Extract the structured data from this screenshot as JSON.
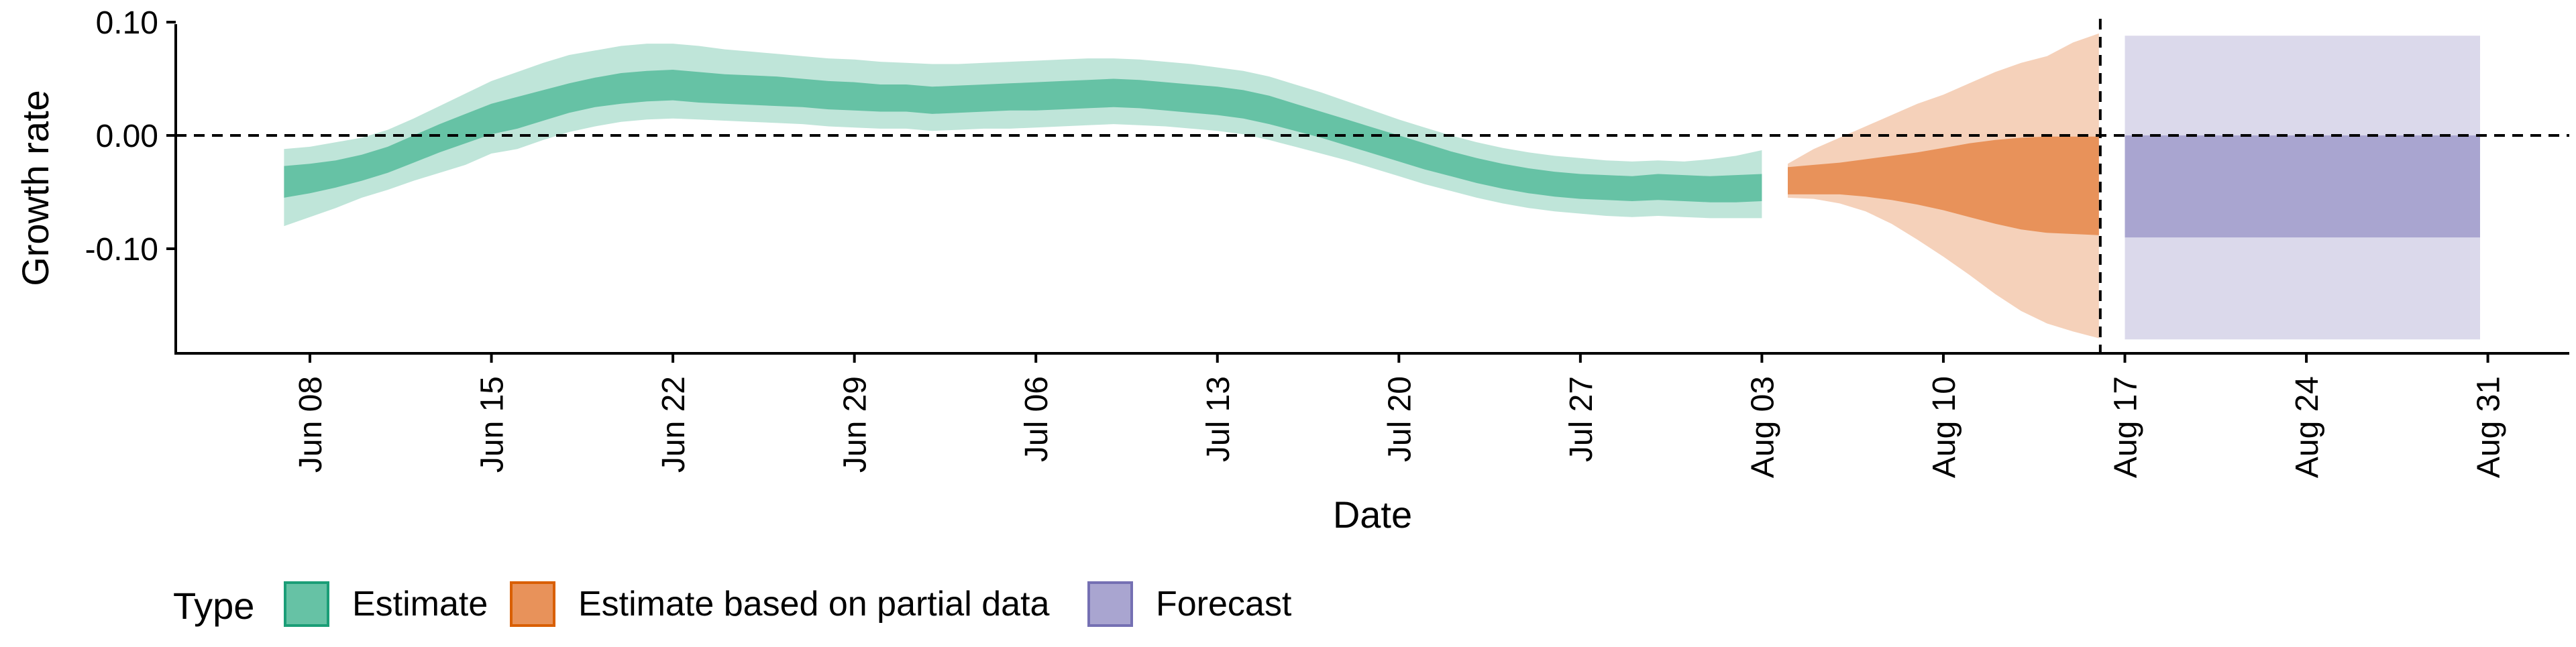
{
  "chart_data": {
    "type": "area",
    "title": "",
    "xlabel": "Date",
    "ylabel": "Growth rate",
    "x_ticks": [
      "Jun 08",
      "Jun 15",
      "Jun 22",
      "Jun 29",
      "Jul 06",
      "Jul 13",
      "Jul 20",
      "Jul 27",
      "Aug 03",
      "Aug 10",
      "Aug 17",
      "Aug 24",
      "Aug 31"
    ],
    "y_ticks": [
      "0.10",
      "0.00",
      "-0.10"
    ],
    "xlim": [
      "2020-06-02",
      "2020-09-02"
    ],
    "ylim": [
      -0.19,
      0.1
    ],
    "grid": false,
    "legend": {
      "title": "Type",
      "position": "bottom-left",
      "items": [
        {
          "label": "Estimate",
          "color": "#66c2a5",
          "border": "#1b9e77"
        },
        {
          "label": "Estimate based on partial data",
          "color": "#e8925a",
          "border": "#d95f02"
        },
        {
          "label": "Forecast",
          "color": "#a9a5d0",
          "border": "#7570b3"
        }
      ]
    },
    "reference_lines": {
      "horizontal_y": 0.0,
      "vertical_date": "2020-08-16"
    },
    "series": [
      {
        "name": "Estimate",
        "color": "#66c2a5",
        "points": [
          {
            "date": "2020-06-07",
            "lo90": -0.08,
            "lo50": -0.055,
            "hi50": -0.027,
            "hi90": -0.012
          },
          {
            "date": "2020-06-08",
            "lo90": -0.072,
            "lo50": -0.051,
            "hi50": -0.025,
            "hi90": -0.01
          },
          {
            "date": "2020-06-09",
            "lo90": -0.064,
            "lo50": -0.046,
            "hi50": -0.022,
            "hi90": -0.006
          },
          {
            "date": "2020-06-10",
            "lo90": -0.055,
            "lo50": -0.04,
            "hi50": -0.017,
            "hi90": -0.002
          },
          {
            "date": "2020-06-11",
            "lo90": -0.048,
            "lo50": -0.033,
            "hi50": -0.01,
            "hi90": 0.005
          },
          {
            "date": "2020-06-12",
            "lo90": -0.04,
            "lo50": -0.024,
            "hi50": 0.0,
            "hi90": 0.015
          },
          {
            "date": "2020-06-13",
            "lo90": -0.033,
            "lo50": -0.015,
            "hi50": 0.01,
            "hi90": 0.026
          },
          {
            "date": "2020-06-14",
            "lo90": -0.026,
            "lo50": -0.007,
            "hi50": 0.019,
            "hi90": 0.037
          },
          {
            "date": "2020-06-15",
            "lo90": -0.016,
            "lo50": 0.001,
            "hi50": 0.028,
            "hi90": 0.048
          },
          {
            "date": "2020-06-16",
            "lo90": -0.012,
            "lo50": 0.006,
            "hi50": 0.034,
            "hi90": 0.056
          },
          {
            "date": "2020-06-17",
            "lo90": -0.004,
            "lo50": 0.013,
            "hi50": 0.04,
            "hi90": 0.064
          },
          {
            "date": "2020-06-18",
            "lo90": 0.003,
            "lo50": 0.02,
            "hi50": 0.046,
            "hi90": 0.071
          },
          {
            "date": "2020-06-19",
            "lo90": 0.008,
            "lo50": 0.025,
            "hi50": 0.051,
            "hi90": 0.075
          },
          {
            "date": "2020-06-20",
            "lo90": 0.012,
            "lo50": 0.028,
            "hi50": 0.055,
            "hi90": 0.079
          },
          {
            "date": "2020-06-21",
            "lo90": 0.014,
            "lo50": 0.03,
            "hi50": 0.057,
            "hi90": 0.081
          },
          {
            "date": "2020-06-22",
            "lo90": 0.015,
            "lo50": 0.031,
            "hi50": 0.058,
            "hi90": 0.081
          },
          {
            "date": "2020-06-23",
            "lo90": 0.014,
            "lo50": 0.029,
            "hi50": 0.056,
            "hi90": 0.079
          },
          {
            "date": "2020-06-24",
            "lo90": 0.013,
            "lo50": 0.028,
            "hi50": 0.054,
            "hi90": 0.076
          },
          {
            "date": "2020-06-25",
            "lo90": 0.012,
            "lo50": 0.027,
            "hi50": 0.053,
            "hi90": 0.074
          },
          {
            "date": "2020-06-26",
            "lo90": 0.011,
            "lo50": 0.026,
            "hi50": 0.052,
            "hi90": 0.072
          },
          {
            "date": "2020-06-27",
            "lo90": 0.01,
            "lo50": 0.025,
            "hi50": 0.05,
            "hi90": 0.07
          },
          {
            "date": "2020-06-28",
            "lo90": 0.008,
            "lo50": 0.023,
            "hi50": 0.048,
            "hi90": 0.068
          },
          {
            "date": "2020-06-29",
            "lo90": 0.007,
            "lo50": 0.022,
            "hi50": 0.047,
            "hi90": 0.067
          },
          {
            "date": "2020-06-30",
            "lo90": 0.006,
            "lo50": 0.021,
            "hi50": 0.045,
            "hi90": 0.065
          },
          {
            "date": "2020-07-01",
            "lo90": 0.006,
            "lo50": 0.021,
            "hi50": 0.045,
            "hi90": 0.064
          },
          {
            "date": "2020-07-02",
            "lo90": 0.004,
            "lo50": 0.019,
            "hi50": 0.043,
            "hi90": 0.063
          },
          {
            "date": "2020-07-03",
            "lo90": 0.005,
            "lo50": 0.02,
            "hi50": 0.044,
            "hi90": 0.063
          },
          {
            "date": "2020-07-04",
            "lo90": 0.006,
            "lo50": 0.021,
            "hi50": 0.045,
            "hi90": 0.064
          },
          {
            "date": "2020-07-05",
            "lo90": 0.006,
            "lo50": 0.022,
            "hi50": 0.046,
            "hi90": 0.065
          },
          {
            "date": "2020-07-06",
            "lo90": 0.007,
            "lo50": 0.022,
            "hi50": 0.047,
            "hi90": 0.066
          },
          {
            "date": "2020-07-07",
            "lo90": 0.008,
            "lo50": 0.023,
            "hi50": 0.048,
            "hi90": 0.067
          },
          {
            "date": "2020-07-08",
            "lo90": 0.009,
            "lo50": 0.024,
            "hi50": 0.049,
            "hi90": 0.068
          },
          {
            "date": "2020-07-09",
            "lo90": 0.01,
            "lo50": 0.025,
            "hi50": 0.05,
            "hi90": 0.068
          },
          {
            "date": "2020-07-10",
            "lo90": 0.009,
            "lo50": 0.024,
            "hi50": 0.049,
            "hi90": 0.067
          },
          {
            "date": "2020-07-11",
            "lo90": 0.008,
            "lo50": 0.022,
            "hi50": 0.047,
            "hi90": 0.065
          },
          {
            "date": "2020-07-12",
            "lo90": 0.006,
            "lo50": 0.02,
            "hi50": 0.045,
            "hi90": 0.063
          },
          {
            "date": "2020-07-13",
            "lo90": 0.004,
            "lo50": 0.018,
            "hi50": 0.043,
            "hi90": 0.06
          },
          {
            "date": "2020-07-14",
            "lo90": 0.001,
            "lo50": 0.015,
            "hi50": 0.04,
            "hi90": 0.057
          },
          {
            "date": "2020-07-15",
            "lo90": -0.004,
            "lo50": 0.01,
            "hi50": 0.035,
            "hi90": 0.052
          },
          {
            "date": "2020-07-16",
            "lo90": -0.01,
            "lo50": 0.004,
            "hi50": 0.028,
            "hi90": 0.045
          },
          {
            "date": "2020-07-17",
            "lo90": -0.016,
            "lo50": -0.002,
            "hi50": 0.021,
            "hi90": 0.038
          },
          {
            "date": "2020-07-18",
            "lo90": -0.022,
            "lo50": -0.009,
            "hi50": 0.014,
            "hi90": 0.03
          },
          {
            "date": "2020-07-19",
            "lo90": -0.029,
            "lo50": -0.016,
            "hi50": 0.007,
            "hi90": 0.022
          },
          {
            "date": "2020-07-20",
            "lo90": -0.036,
            "lo50": -0.023,
            "hi50": 0.0,
            "hi90": 0.014
          },
          {
            "date": "2020-07-21",
            "lo90": -0.043,
            "lo50": -0.03,
            "hi50": -0.007,
            "hi90": 0.007
          },
          {
            "date": "2020-07-22",
            "lo90": -0.049,
            "lo50": -0.036,
            "hi50": -0.014,
            "hi90": 0.0
          },
          {
            "date": "2020-07-23",
            "lo90": -0.055,
            "lo50": -0.042,
            "hi50": -0.02,
            "hi90": -0.006
          },
          {
            "date": "2020-07-24",
            "lo90": -0.06,
            "lo50": -0.047,
            "hi50": -0.025,
            "hi90": -0.011
          },
          {
            "date": "2020-07-25",
            "lo90": -0.064,
            "lo50": -0.051,
            "hi50": -0.029,
            "hi90": -0.015
          },
          {
            "date": "2020-07-26",
            "lo90": -0.067,
            "lo50": -0.054,
            "hi50": -0.032,
            "hi90": -0.018
          },
          {
            "date": "2020-07-27",
            "lo90": -0.069,
            "lo50": -0.056,
            "hi50": -0.034,
            "hi90": -0.02
          },
          {
            "date": "2020-07-28",
            "lo90": -0.071,
            "lo50": -0.057,
            "hi50": -0.035,
            "hi90": -0.022
          },
          {
            "date": "2020-07-29",
            "lo90": -0.072,
            "lo50": -0.058,
            "hi50": -0.036,
            "hi90": -0.023
          },
          {
            "date": "2020-07-30",
            "lo90": -0.071,
            "lo50": -0.057,
            "hi50": -0.034,
            "hi90": -0.022
          },
          {
            "date": "2020-07-31",
            "lo90": -0.072,
            "lo50": -0.058,
            "hi50": -0.035,
            "hi90": -0.023
          },
          {
            "date": "2020-08-01",
            "lo90": -0.073,
            "lo50": -0.059,
            "hi50": -0.036,
            "hi90": -0.021
          },
          {
            "date": "2020-08-02",
            "lo90": -0.073,
            "lo50": -0.059,
            "hi50": -0.035,
            "hi90": -0.018
          },
          {
            "date": "2020-08-03",
            "lo90": -0.073,
            "lo50": -0.058,
            "hi50": -0.034,
            "hi90": -0.013
          }
        ]
      },
      {
        "name": "Estimate based on partial data",
        "color": "#e8925a",
        "points": [
          {
            "date": "2020-08-04",
            "lo90": -0.055,
            "lo50": -0.052,
            "hi50": -0.028,
            "hi90": -0.025
          },
          {
            "date": "2020-08-05",
            "lo90": -0.056,
            "lo50": -0.052,
            "hi50": -0.026,
            "hi90": -0.012
          },
          {
            "date": "2020-08-06",
            "lo90": -0.06,
            "lo50": -0.052,
            "hi50": -0.024,
            "hi90": -0.002
          },
          {
            "date": "2020-08-07",
            "lo90": -0.067,
            "lo50": -0.054,
            "hi50": -0.021,
            "hi90": 0.008
          },
          {
            "date": "2020-08-08",
            "lo90": -0.078,
            "lo50": -0.057,
            "hi50": -0.018,
            "hi90": 0.018
          },
          {
            "date": "2020-08-09",
            "lo90": -0.092,
            "lo50": -0.061,
            "hi50": -0.015,
            "hi90": 0.028
          },
          {
            "date": "2020-08-10",
            "lo90": -0.107,
            "lo50": -0.066,
            "hi50": -0.011,
            "hi90": 0.036
          },
          {
            "date": "2020-08-11",
            "lo90": -0.123,
            "lo50": -0.072,
            "hi50": -0.007,
            "hi90": 0.046
          },
          {
            "date": "2020-08-12",
            "lo90": -0.14,
            "lo50": -0.078,
            "hi50": -0.004,
            "hi90": 0.056
          },
          {
            "date": "2020-08-13",
            "lo90": -0.155,
            "lo50": -0.083,
            "hi50": -0.002,
            "hi90": 0.064
          },
          {
            "date": "2020-08-14",
            "lo90": -0.166,
            "lo50": -0.086,
            "hi50": -0.001,
            "hi90": 0.07
          },
          {
            "date": "2020-08-15",
            "lo90": -0.173,
            "lo50": -0.087,
            "hi50": -0.001,
            "hi90": 0.082
          },
          {
            "date": "2020-08-16",
            "lo90": -0.179,
            "lo50": -0.088,
            "hi50": -0.001,
            "hi90": 0.09
          }
        ]
      },
      {
        "name": "Forecast",
        "color": "#a9a5d0",
        "points": [
          {
            "date": "2020-08-17",
            "lo90": -0.18,
            "lo50": -0.09,
            "hi50": 0.0,
            "hi90": 0.088
          },
          {
            "date": "2020-08-30",
            "lo90": -0.18,
            "lo50": -0.09,
            "hi50": 0.0,
            "hi90": 0.088
          }
        ]
      }
    ]
  }
}
